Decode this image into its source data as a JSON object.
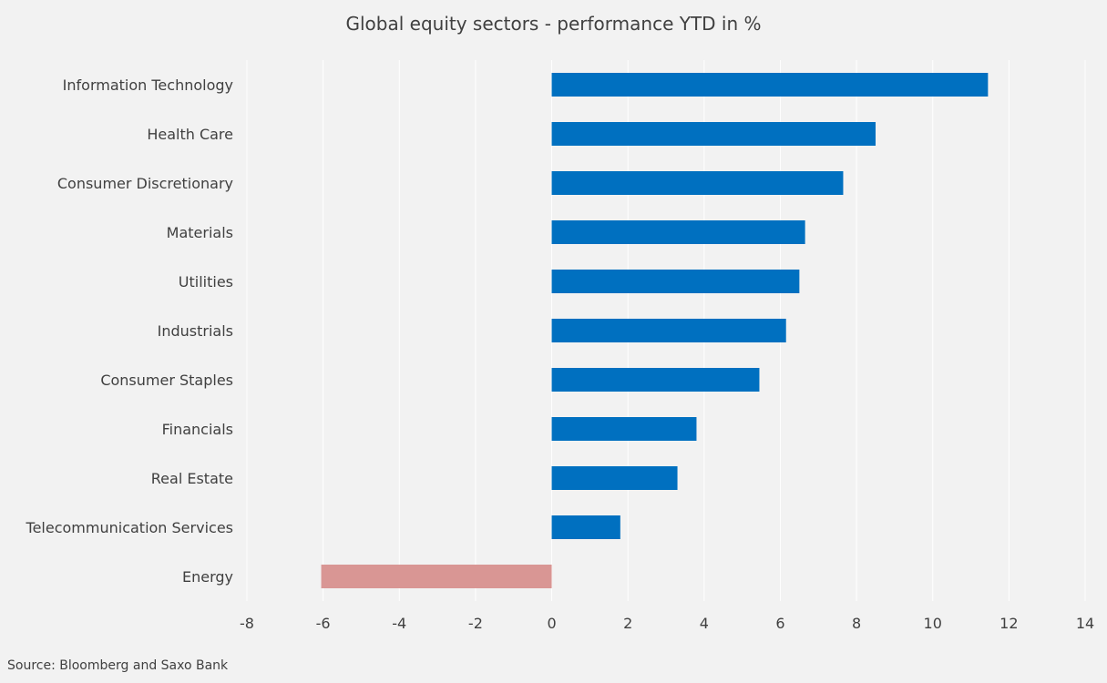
{
  "chart_data": {
    "type": "bar",
    "orientation": "horizontal",
    "title": "Global equity sectors - performance YTD in %",
    "categories": [
      "Information Technology",
      "Health Care",
      "Consumer Discretionary",
      "Materials",
      "Utilities",
      "Industrials",
      "Consumer Staples",
      "Financials",
      "Real Estate",
      "Telecommunication Services",
      "Energy"
    ],
    "values": [
      11.45,
      8.5,
      7.65,
      6.65,
      6.5,
      6.15,
      5.45,
      3.8,
      3.3,
      1.8,
      -6.05
    ],
    "xlim": [
      -8,
      14
    ],
    "xticks": [
      -8,
      -6,
      -4,
      -2,
      0,
      2,
      4,
      6,
      8,
      10,
      12,
      14
    ],
    "grid": "vertical",
    "colors": {
      "positive": "#0070c0",
      "negative": "#d99694",
      "grid": "#ffffff",
      "background": "#f2f2f2"
    },
    "source": "Source: Bloomberg and Saxo Bank"
  }
}
